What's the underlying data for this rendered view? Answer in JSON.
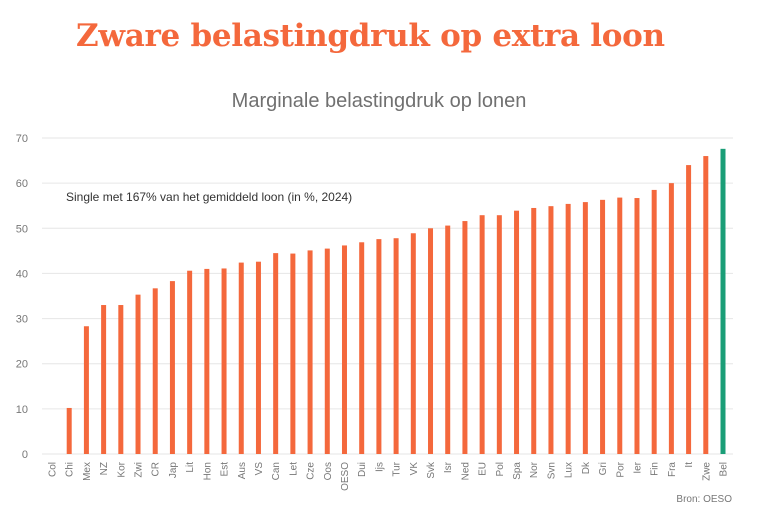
{
  "headline": "Zware belastingdruk op extra loon",
  "source": "Bron: OESO",
  "chart_data": {
    "type": "bar",
    "title": "Marginale belastingdruk op lonen",
    "annotation": "Single met 167% van het gemiddeld loon (in %, 2024)",
    "xlabel": "",
    "ylabel": "",
    "ylim": [
      0,
      70
    ],
    "yticks": [
      0,
      10,
      20,
      30,
      40,
      50,
      60,
      70
    ],
    "grid": true,
    "colors": {
      "default": "#f4683c",
      "highlight": "#1a9e77",
      "grid": "#e6e6e6"
    },
    "highlight": "Bel",
    "categories": [
      "Col",
      "Chi",
      "Mex",
      "NZ",
      "Kor",
      "Zwi",
      "CR",
      "Jap",
      "Lit",
      "Hon",
      "Est",
      "Aus",
      "VS",
      "Can",
      "Let",
      "Cze",
      "Oos",
      "OESO",
      "Dui",
      "Ijs",
      "Tur",
      "VK",
      "Svk",
      "Isr",
      "Ned",
      "EU",
      "Pol",
      "Spa",
      "Nor",
      "Svn",
      "Lux",
      "Dk",
      "Gri",
      "Por",
      "Ier",
      "Fin",
      "Fra",
      "It",
      "Zwe",
      "Bel"
    ],
    "values": [
      0,
      10.2,
      28.3,
      33.0,
      33.0,
      35.3,
      36.7,
      38.3,
      40.6,
      41.0,
      41.1,
      42.4,
      42.6,
      44.5,
      44.4,
      45.1,
      45.5,
      46.2,
      46.9,
      47.6,
      47.8,
      48.9,
      50.0,
      50.6,
      51.6,
      52.9,
      52.9,
      53.9,
      54.5,
      54.9,
      55.4,
      55.8,
      56.3,
      56.8,
      56.7,
      58.5,
      60.0,
      64.0,
      66.0,
      67.6
    ]
  }
}
